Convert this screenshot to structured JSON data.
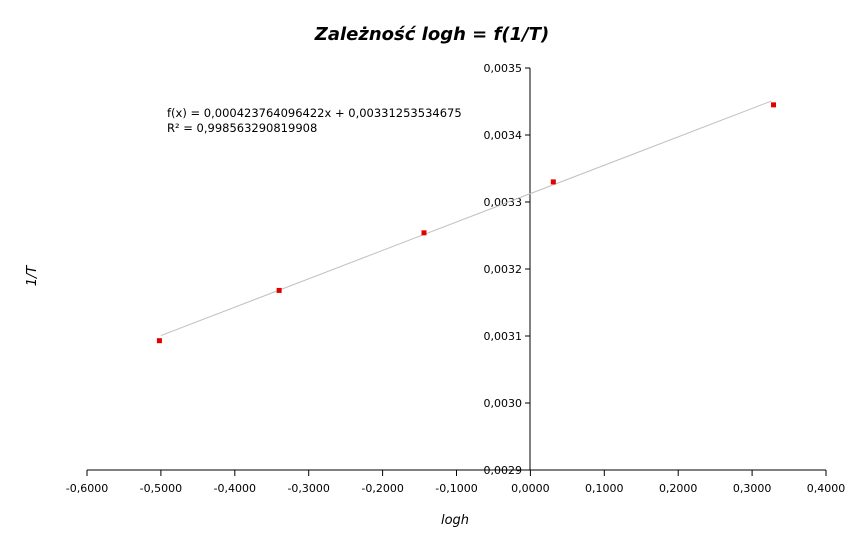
{
  "chart_data": {
    "type": "scatter",
    "title": "Zależność logh = f(1/T)",
    "xlabel": "logh",
    "ylabel": "1/T",
    "xlim": [
      -0.6,
      0.4
    ],
    "ylim": [
      0.0029,
      0.0035
    ],
    "x_ticks": [
      "-0,6000",
      "-0,5000",
      "-0,4000",
      "-0,3000",
      "-0,2000",
      "-0,1000",
      "0,0000",
      "0,1000",
      "0,2000",
      "0,3000",
      "0,4000"
    ],
    "y_ticks": [
      "0,0029",
      "0,0030",
      "0,0031",
      "0,0032",
      "0,0033",
      "0,0034",
      "0,0035"
    ],
    "points": [
      {
        "x": -0.502,
        "y": 0.003093
      },
      {
        "x": -0.34,
        "y": 0.003168
      },
      {
        "x": -0.144,
        "y": 0.003254
      },
      {
        "x": 0.031,
        "y": 0.00333
      },
      {
        "x": 0.329,
        "y": 0.003445
      }
    ],
    "trendline": {
      "slope": 0.000423764096422,
      "intercept": 0.00331253534675,
      "x_range": [
        -0.5,
        0.326
      ]
    },
    "equation": "f(x) = 0,000423764096422x + 0,00331253534675",
    "r_squared": "R² = 0,998563290819908",
    "point_color": "#e00000",
    "trendline_color": "#bfbfbf",
    "grid": false,
    "legend": "none"
  }
}
